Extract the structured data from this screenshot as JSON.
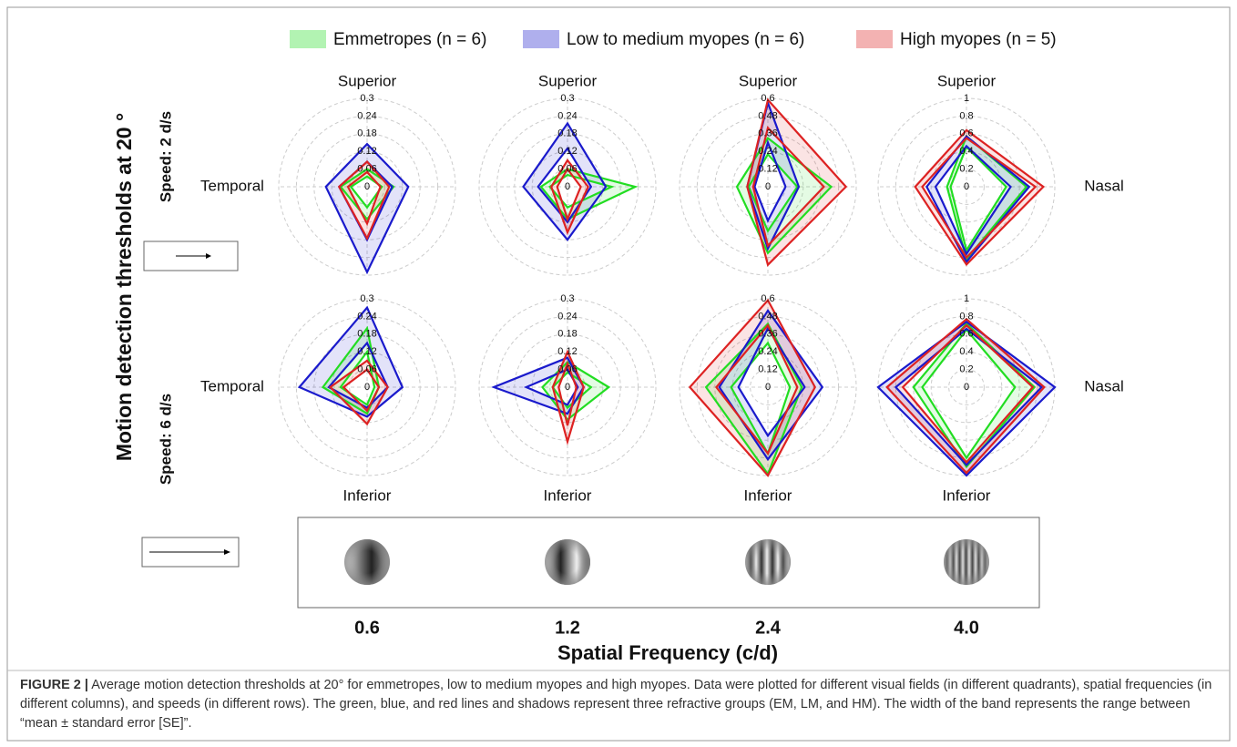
{
  "legend": [
    {
      "name": "Emmetropes (n = 6)",
      "color": "#22dd22"
    },
    {
      "name": "Low to medium myopes (n = 6)",
      "color": "#1a1acc"
    },
    {
      "name": "High myopes (n = 5)",
      "color": "#dd2222"
    }
  ],
  "y_title": "Motion detection thresholds at 20 °",
  "row_labels": [
    "Speed: 2 d/s",
    "Speed: 6 d/s"
  ],
  "x_title": "Spatial Frequency (c/d)",
  "column_labels": [
    "0.6",
    "1.2",
    "2.4",
    "4.0"
  ],
  "caption": {
    "label": "FIGURE 2 |",
    "text": "Average motion detection thresholds at 20° for emmetropes, low to medium myopes and high myopes. Data were plotted for different visual fields (in different quadrants), spatial frequencies (in different columns), and speeds (in different rows). The green, blue, and red lines and shadows represent three refractive groups (EM, LM, and HM). The width of the band represents the range between “mean ± standard error [SE]”."
  },
  "chart_data": [
    {
      "type": "radar",
      "categories": [
        "Superior",
        null,
        null,
        "Temporal"
      ],
      "rlim": [
        0,
        0.3
      ],
      "rticks": [
        0,
        0.06,
        0.12,
        0.18,
        0.24,
        0.3
      ],
      "series": [
        {
          "color": "#22dd22",
          "lower": [
            0.035,
            0.05,
            0.07,
            0.055
          ],
          "upper": [
            0.06,
            0.09,
            0.11,
            0.09
          ]
        },
        {
          "color": "#1a1acc",
          "lower": [
            0.085,
            0.085,
            0.18,
            0.095
          ],
          "upper": [
            0.145,
            0.14,
            0.29,
            0.14
          ]
        },
        {
          "color": "#dd2222",
          "lower": [
            0.05,
            0.045,
            0.125,
            0.065
          ],
          "upper": [
            0.085,
            0.075,
            0.175,
            0.095
          ]
        }
      ]
    },
    {
      "type": "radar",
      "categories": [
        "Superior",
        null,
        null,
        null
      ],
      "rlim": [
        0,
        0.3
      ],
      "rticks": [
        0,
        0.06,
        0.12,
        0.18,
        0.24,
        0.3
      ],
      "series": [
        {
          "color": "#22dd22",
          "lower": [
            0.04,
            0.15,
            0.07,
            0.06
          ],
          "upper": [
            0.06,
            0.23,
            0.11,
            0.09
          ]
        },
        {
          "color": "#1a1acc",
          "lower": [
            0.13,
            0.08,
            0.12,
            0.1
          ],
          "upper": [
            0.215,
            0.13,
            0.18,
            0.15
          ]
        },
        {
          "color": "#dd2222",
          "lower": [
            0.06,
            0.045,
            0.11,
            0.035
          ],
          "upper": [
            0.09,
            0.07,
            0.155,
            0.055
          ]
        }
      ]
    },
    {
      "type": "radar",
      "categories": [
        "Superior",
        null,
        null,
        null
      ],
      "rlim": [
        0,
        0.6
      ],
      "rticks": [
        0,
        0.12,
        0.24,
        0.36,
        0.48,
        0.6
      ],
      "series": [
        {
          "color": "#22dd22",
          "lower": [
            0.22,
            0.2,
            0.3,
            0.13
          ],
          "upper": [
            0.33,
            0.43,
            0.45,
            0.21
          ]
        },
        {
          "color": "#1a1acc",
          "lower": [
            0.3,
            0.12,
            0.23,
            0.09
          ],
          "upper": [
            0.57,
            0.21,
            0.42,
            0.14
          ]
        },
        {
          "color": "#dd2222",
          "lower": [
            0.4,
            0.38,
            0.4,
            0.1
          ],
          "upper": [
            0.59,
            0.53,
            0.53,
            0.14
          ]
        }
      ]
    },
    {
      "type": "radar",
      "categories": [
        "Superior",
        "Nasal",
        null,
        null
      ],
      "rlim": [
        0,
        1
      ],
      "rticks": [
        0,
        0.2,
        0.4,
        0.6,
        0.8,
        1
      ],
      "series": [
        {
          "color": "#22dd22",
          "lower": [
            0.45,
            0.45,
            0.72,
            0.18
          ],
          "upper": [
            0.57,
            0.68,
            0.82,
            0.22
          ]
        },
        {
          "color": "#1a1acc",
          "lower": [
            0.46,
            0.5,
            0.76,
            0.35
          ],
          "upper": [
            0.57,
            0.71,
            0.85,
            0.45
          ]
        },
        {
          "color": "#dd2222",
          "lower": [
            0.55,
            0.78,
            0.8,
            0.5
          ],
          "upper": [
            0.64,
            0.87,
            0.88,
            0.58
          ]
        }
      ]
    },
    {
      "type": "radar",
      "categories": [
        null,
        null,
        "Inferior",
        "Temporal"
      ],
      "rlim": [
        0,
        0.3
      ],
      "rticks": [
        0,
        0.06,
        0.12,
        0.18,
        0.24,
        0.3
      ],
      "series": [
        {
          "color": "#22dd22",
          "lower": [
            0.12,
            0.025,
            0.06,
            0.09
          ],
          "upper": [
            0.2,
            0.04,
            0.09,
            0.15
          ]
        },
        {
          "color": "#1a1acc",
          "lower": [
            0.15,
            0.07,
            0.07,
            0.13
          ],
          "upper": [
            0.27,
            0.12,
            0.1,
            0.23
          ]
        },
        {
          "color": "#dd2222",
          "lower": [
            0.06,
            0.04,
            0.08,
            0.08
          ],
          "upper": [
            0.09,
            0.07,
            0.125,
            0.125
          ]
        }
      ]
    },
    {
      "type": "radar",
      "categories": [
        null,
        null,
        "Inferior",
        null
      ],
      "rlim": [
        0,
        0.3
      ],
      "rticks": [
        0,
        0.06,
        0.12,
        0.18,
        0.24,
        0.3
      ],
      "series": [
        {
          "color": "#22dd22",
          "lower": [
            0.05,
            0.08,
            0.07,
            0.05
          ],
          "upper": [
            0.085,
            0.14,
            0.11,
            0.085
          ]
        },
        {
          "color": "#1a1acc",
          "lower": [
            0.06,
            0.035,
            0.06,
            0.14
          ],
          "upper": [
            0.1,
            0.055,
            0.09,
            0.25
          ]
        },
        {
          "color": "#dd2222",
          "lower": [
            0.08,
            0.03,
            0.13,
            0.03
          ],
          "upper": [
            0.12,
            0.055,
            0.185,
            0.05
          ]
        }
      ]
    },
    {
      "type": "radar",
      "categories": [
        null,
        null,
        "Inferior",
        null
      ],
      "rlim": [
        0,
        0.6
      ],
      "rticks": [
        0,
        0.12,
        0.24,
        0.36,
        0.48,
        0.6
      ],
      "series": [
        {
          "color": "#22dd22",
          "lower": [
            0.3,
            0.15,
            0.45,
            0.25
          ],
          "upper": [
            0.43,
            0.23,
            0.59,
            0.42
          ]
        },
        {
          "color": "#1a1acc",
          "lower": [
            0.4,
            0.25,
            0.33,
            0.2
          ],
          "upper": [
            0.52,
            0.37,
            0.49,
            0.33
          ]
        },
        {
          "color": "#dd2222",
          "lower": [
            0.42,
            0.2,
            0.45,
            0.35
          ],
          "upper": [
            0.59,
            0.32,
            0.6,
            0.53
          ]
        }
      ]
    },
    {
      "type": "radar",
      "categories": [
        null,
        "Nasal",
        "Inferior",
        null
      ],
      "rlim": [
        0,
        1
      ],
      "rticks": [
        0,
        0.2,
        0.4,
        0.6,
        0.8,
        1
      ],
      "series": [
        {
          "color": "#22dd22",
          "lower": [
            0.65,
            0.55,
            0.8,
            0.5
          ],
          "upper": [
            0.72,
            0.77,
            0.9,
            0.6
          ]
        },
        {
          "color": "#1a1acc",
          "lower": [
            0.66,
            0.85,
            0.88,
            0.8
          ],
          "upper": [
            0.74,
            1.0,
            1.0,
            1.0
          ]
        },
        {
          "color": "#dd2222",
          "lower": [
            0.7,
            0.75,
            0.85,
            0.72
          ],
          "upper": [
            0.77,
            0.88,
            0.97,
            0.9
          ]
        }
      ]
    }
  ]
}
